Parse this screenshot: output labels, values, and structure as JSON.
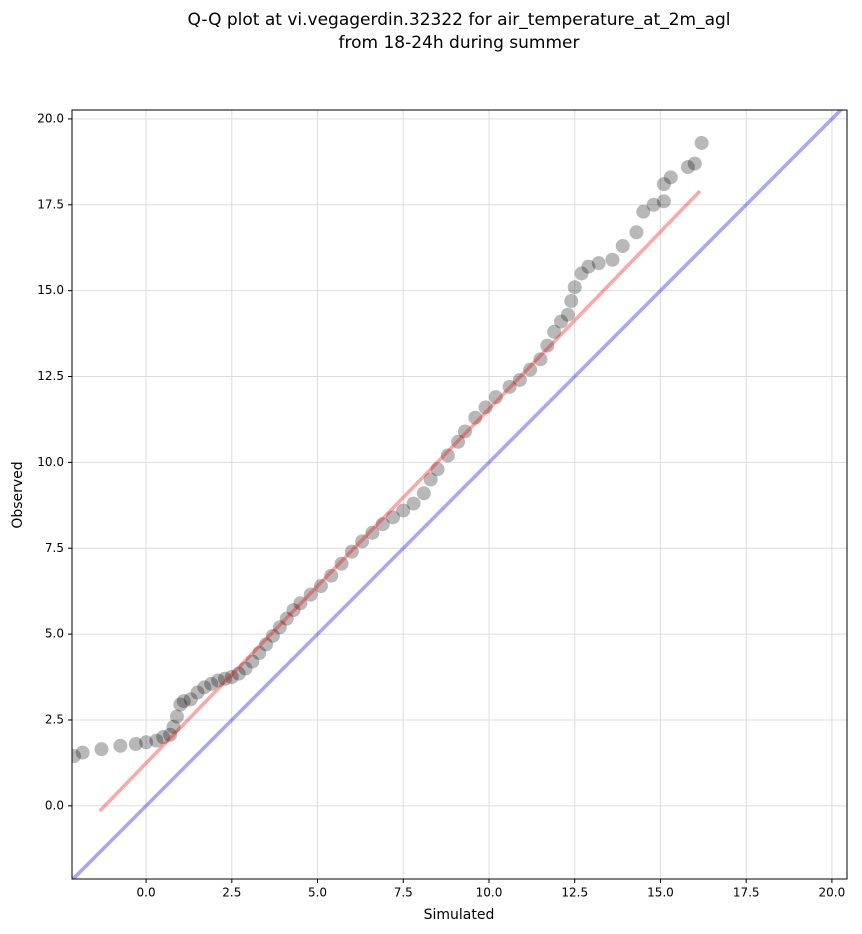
{
  "chart_data": {
    "type": "scatter",
    "title": [
      "Q-Q plot at vi.vegagerdin.32322 for air_temperature_at_2m_agl",
      "from 18-24h during summer"
    ],
    "x_label": "Simulated",
    "y_label": "Observed",
    "xlim": [
      -2.16,
      20.44
    ],
    "ylim": [
      -2.13,
      20.26
    ],
    "xticks": [
      {
        "value": 0,
        "label": "0.0"
      },
      2.5,
      {
        "value": 5,
        "label": "5.0"
      },
      7.5,
      {
        "value": 10,
        "label": "10.0"
      },
      12.5,
      {
        "value": 15,
        "label": "15.0"
      },
      17.5,
      {
        "value": 20,
        "label": "20.0"
      }
    ],
    "yticks": [
      {
        "value": 0,
        "label": "0.0"
      },
      2.5,
      {
        "value": 5,
        "label": "5.0"
      },
      7.5,
      {
        "value": 10,
        "label": "10.0"
      },
      12.5,
      {
        "value": 15,
        "label": "15.0"
      },
      17.5,
      {
        "value": 20,
        "label": "20.0"
      }
    ],
    "grid": true,
    "series": [
      {
        "color": "#000000",
        "x": [
          -2.1,
          -1.85,
          -1.3,
          -0.75,
          -0.3,
          0.0,
          0.3,
          0.5,
          0.7,
          0.8,
          0.9,
          1.0,
          1.1,
          1.3,
          1.5,
          1.7,
          1.9,
          2.1,
          2.3,
          2.5,
          2.7,
          2.9,
          3.1,
          3.3,
          3.5,
          3.7,
          3.9,
          4.1,
          4.3,
          4.5,
          4.8,
          5.1,
          5.4,
          5.7,
          6.0,
          6.3,
          6.6,
          6.9,
          7.2,
          7.5,
          7.8,
          8.1,
          8.3,
          8.5,
          8.8,
          9.1,
          9.3,
          9.6,
          9.9,
          10.2,
          10.6,
          10.9,
          11.2,
          11.5,
          11.7,
          11.9,
          12.1,
          12.3,
          12.4,
          12.5,
          12.7,
          12.9,
          13.2,
          13.6,
          13.9,
          14.3,
          14.5,
          14.8,
          15.1,
          15.1,
          15.3,
          15.8,
          16.0,
          16.2
        ],
        "y": [
          1.45,
          1.55,
          1.65,
          1.75,
          1.8,
          1.85,
          1.9,
          2.0,
          2.07,
          2.3,
          2.6,
          2.95,
          3.05,
          3.1,
          3.3,
          3.45,
          3.55,
          3.65,
          3.7,
          3.75,
          3.85,
          4.0,
          4.2,
          4.45,
          4.7,
          4.95,
          5.2,
          5.45,
          5.7,
          5.9,
          6.15,
          6.4,
          6.7,
          7.05,
          7.4,
          7.7,
          7.95,
          8.2,
          8.4,
          8.6,
          8.8,
          9.1,
          9.5,
          9.8,
          10.2,
          10.6,
          10.9,
          11.3,
          11.6,
          11.9,
          12.2,
          12.4,
          12.7,
          13.0,
          13.4,
          13.8,
          14.1,
          14.3,
          14.7,
          15.1,
          15.5,
          15.7,
          15.8,
          15.9,
          16.3,
          16.7,
          17.3,
          17.5,
          17.6,
          18.1,
          18.3,
          18.6,
          18.7,
          19.3
        ]
      }
    ],
    "lines": [
      {
        "color": "#ff0000",
        "x": [
          -1.35,
          16.15
        ],
        "y": [
          -0.15,
          17.9
        ]
      },
      {
        "color": "#0000ff",
        "x": [
          -2.16,
          20.44
        ],
        "y": [
          -2.16,
          20.44
        ]
      }
    ]
  }
}
